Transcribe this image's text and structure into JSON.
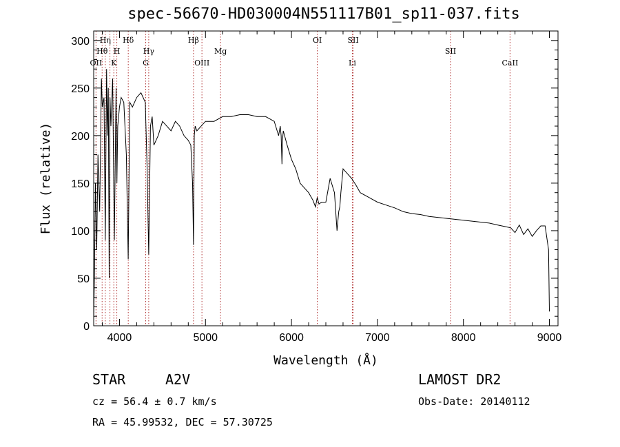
{
  "chart_data": {
    "type": "line",
    "title": "spec-56670-HD030004N551117B01_sp11-037.fits",
    "xlabel": "Wavelength (Å)",
    "ylabel": "Flux (relative)",
    "xlim": [
      3700,
      9100
    ],
    "ylim": [
      0,
      310
    ],
    "xticks": [
      4000,
      5000,
      6000,
      7000,
      8000,
      9000
    ],
    "yticks": [
      0,
      50,
      100,
      150,
      200,
      250,
      300
    ],
    "grid": false,
    "series": [
      {
        "x": [
          3700,
          3710,
          3720,
          3735,
          3750,
          3770,
          3790,
          3800,
          3820,
          3835,
          3850,
          3860,
          3870,
          3880,
          3890,
          3900,
          3920,
          3940,
          3960,
          3970,
          3980,
          3990,
          4000,
          4020,
          4050,
          4080,
          4101,
          4120,
          4150,
          4200,
          4250,
          4300,
          4320,
          4340,
          4360,
          4380,
          4400,
          4450,
          4500,
          4550,
          4600,
          4650,
          4700,
          4750,
          4800,
          4830,
          4850,
          4861,
          4870,
          4880,
          4900,
          4950,
          5000,
          5100,
          5200,
          5300,
          5400,
          5500,
          5600,
          5700,
          5800,
          5850,
          5870,
          5880,
          5890,
          5896,
          5905,
          5920,
          5950,
          6000,
          6050,
          6100,
          6150,
          6200,
          6250,
          6280,
          6300,
          6320,
          6350,
          6400,
          6450,
          6500,
          6530,
          6550,
          6563,
          6575,
          6600,
          6650,
          6700,
          6750,
          6800,
          6900,
          7000,
          7100,
          7200,
          7300,
          7400,
          7500,
          7600,
          7700,
          7800,
          7900,
          8000,
          8100,
          8200,
          8300,
          8400,
          8500,
          8550,
          8600,
          8650,
          8700,
          8750,
          8800,
          8850,
          8900,
          8950,
          8990,
          9000
        ],
        "y": [
          5,
          60,
          150,
          80,
          180,
          120,
          260,
          230,
          240,
          90,
          270,
          200,
          250,
          50,
          240,
          210,
          260,
          90,
          250,
          150,
          210,
          220,
          230,
          240,
          235,
          180,
          70,
          235,
          230,
          240,
          245,
          235,
          170,
          75,
          210,
          220,
          190,
          200,
          215,
          210,
          205,
          215,
          210,
          200,
          195,
          190,
          150,
          85,
          200,
          210,
          205,
          210,
          215,
          215,
          220,
          220,
          222,
          222,
          220,
          220,
          215,
          200,
          210,
          200,
          170,
          195,
          205,
          200,
          190,
          175,
          165,
          150,
          145,
          140,
          132,
          125,
          135,
          128,
          130,
          130,
          155,
          140,
          100,
          120,
          125,
          140,
          165,
          160,
          155,
          148,
          140,
          135,
          130,
          127,
          124,
          120,
          118,
          117,
          115,
          114,
          113,
          112,
          111,
          110,
          109,
          108,
          106,
          104,
          103,
          98,
          106,
          96,
          102,
          94,
          100,
          105,
          105,
          80,
          15
        ]
      }
    ],
    "annotations": [
      {
        "label": "OII",
        "x": 3727,
        "row": 2
      },
      {
        "label": "Hθ",
        "x": 3798,
        "row": 1
      },
      {
        "label": "Hη",
        "x": 3835,
        "row": 0
      },
      {
        "label": "K",
        "x": 3934,
        "row": 2
      },
      {
        "label": "H",
        "x": 3969,
        "row": 1
      },
      {
        "label": "Hδ",
        "x": 4102,
        "row": 0
      },
      {
        "label": "Hγ",
        "x": 4340,
        "row": 1
      },
      {
        "label": "G",
        "x": 4305,
        "row": 2
      },
      {
        "label": "Hβ",
        "x": 4861,
        "row": 0
      },
      {
        "label": "OIII",
        "x": 4959,
        "row": 2
      },
      {
        "label": "Mg",
        "x": 5175,
        "row": 1
      },
      {
        "label": "OI",
        "x": 6300,
        "row": 0
      },
      {
        "label": "SII",
        "x": 6717,
        "row": 0
      },
      {
        "label": "Li",
        "x": 6708,
        "row": 2
      },
      {
        "label": "SII",
        "x": 7850,
        "row": 1
      },
      {
        "label": "CaII",
        "x": 8542,
        "row": 2
      }
    ],
    "line_markers": [
      3727,
      3798,
      3835,
      3889,
      3934,
      3969,
      4102,
      4305,
      4340,
      4861,
      4959,
      5175,
      6300,
      6708,
      6717,
      7850,
      8542
    ]
  },
  "info": {
    "object": "STAR",
    "subclass": "A2V",
    "survey": "LAMOST DR2",
    "cz": "cz = 56.4 ± 0.7 km/s",
    "obs_date": "Obs-Date: 20140112",
    "coords": "RA =  45.99532, DEC =  57.30725"
  }
}
